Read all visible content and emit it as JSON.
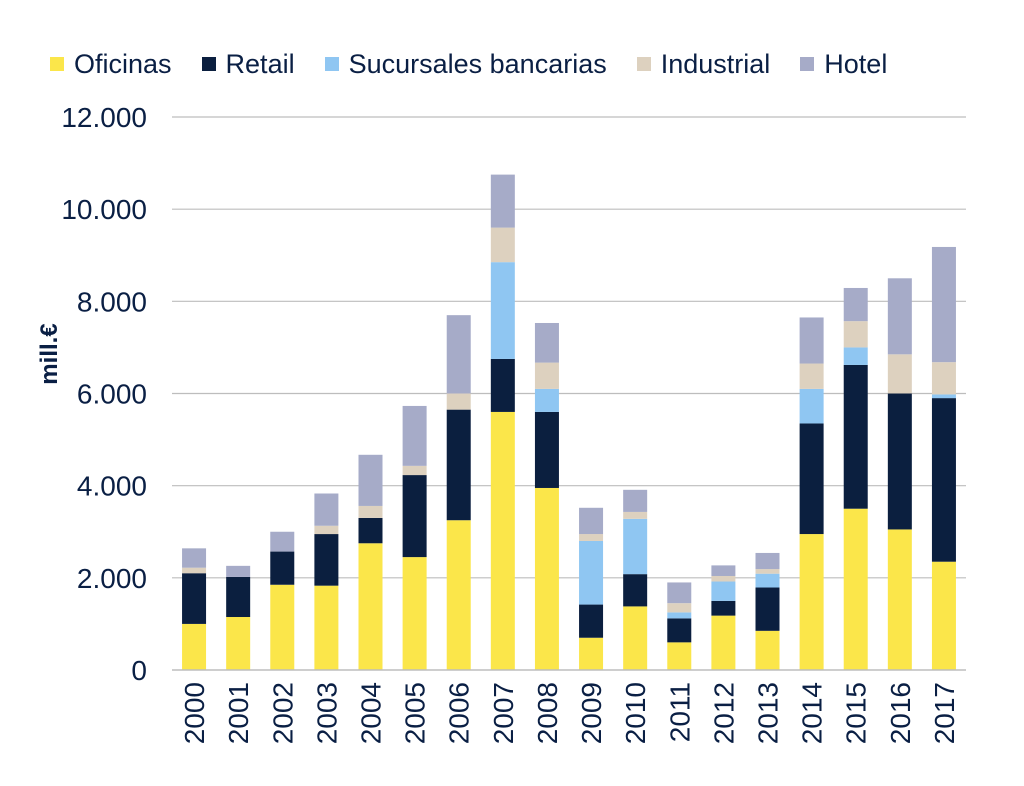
{
  "chart_data": {
    "type": "bar",
    "stacked": true,
    "title": "",
    "xlabel": "",
    "ylabel": "mill.€",
    "ylim": [
      0,
      12000
    ],
    "yticks": [
      0,
      2000,
      4000,
      6000,
      8000,
      10000,
      12000
    ],
    "ytick_labels": [
      "0",
      "2.000",
      "4.000",
      "6.000",
      "8.000",
      "10.000",
      "12.000"
    ],
    "grid": "horizontal",
    "legend_position": "top",
    "categories": [
      "2000",
      "2001",
      "2002",
      "2003",
      "2004",
      "2005",
      "2006",
      "2007",
      "2008",
      "2009",
      "2010",
      "2011",
      "2012",
      "2013",
      "2014",
      "2015",
      "2016",
      "2017"
    ],
    "series": [
      {
        "name": "Oficinas",
        "color": "#fbe64a",
        "values": [
          1000,
          1150,
          1850,
          1830,
          2750,
          2450,
          3250,
          5600,
          3950,
          700,
          1380,
          600,
          1180,
          850,
          2950,
          3500,
          3050,
          2350
        ]
      },
      {
        "name": "Retail",
        "color": "#0b1f3f",
        "values": [
          1100,
          870,
          720,
          1120,
          550,
          1780,
          2400,
          1150,
          1650,
          720,
          700,
          520,
          320,
          940,
          2400,
          3120,
          2950,
          3550
        ]
      },
      {
        "name": "Sucursales bancarias",
        "color": "#8fc6f2",
        "values": [
          0,
          0,
          0,
          0,
          0,
          0,
          0,
          2100,
          500,
          1380,
          1200,
          130,
          420,
          300,
          750,
          380,
          0,
          80
        ]
      },
      {
        "name": "Industrial",
        "color": "#ddd1bf",
        "values": [
          120,
          0,
          0,
          180,
          260,
          200,
          350,
          750,
          570,
          150,
          150,
          200,
          120,
          100,
          550,
          570,
          850,
          700
        ]
      },
      {
        "name": "Hotel",
        "color": "#a6abc8",
        "values": [
          420,
          240,
          430,
          700,
          1110,
          1300,
          1700,
          1150,
          860,
          570,
          480,
          450,
          230,
          350,
          1000,
          720,
          1650,
          2500
        ]
      }
    ]
  }
}
